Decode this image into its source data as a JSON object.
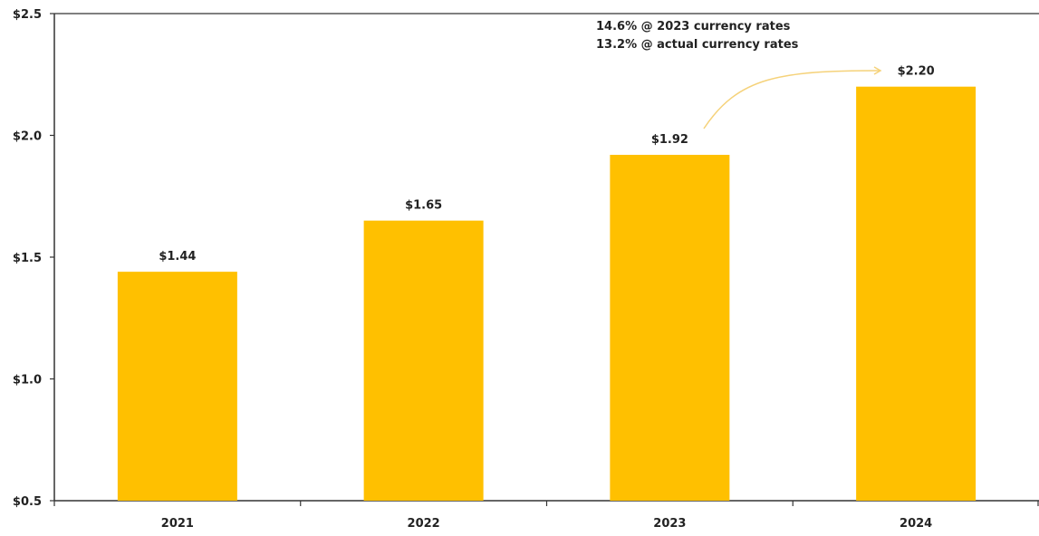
{
  "chart_data": {
    "type": "bar",
    "categories": [
      "2021",
      "2022",
      "2023",
      "2024"
    ],
    "values": [
      1.44,
      1.65,
      1.92,
      2.2
    ],
    "data_labels": [
      "$1.44",
      "$1.65",
      "$1.92",
      "$2.20"
    ],
    "title": "",
    "xlabel": "",
    "ylabel": "",
    "ylim": [
      0.5,
      2.5
    ],
    "yticks": [
      0.5,
      1.0,
      1.5,
      2.0,
      2.5
    ],
    "ytick_labels": [
      "$0.5",
      "$1.0",
      "$1.5",
      "$2.0",
      "$2.5"
    ],
    "grid": false,
    "bar_color": "#FFC000",
    "annotation": {
      "lines": [
        "14.6% @ 2023 currency rates",
        "13.2% @ actual currency rates"
      ],
      "arrow_color": "#F5D27A",
      "from_category": "2023",
      "to_category": "2024"
    }
  }
}
